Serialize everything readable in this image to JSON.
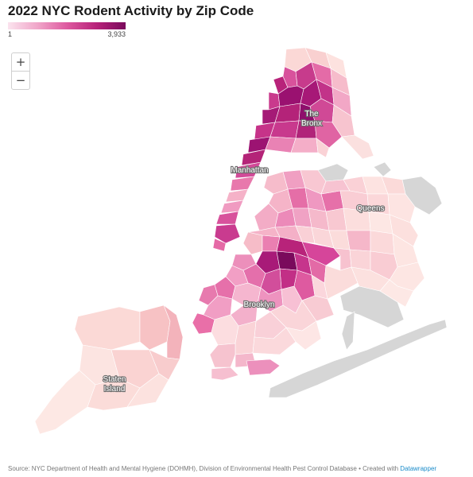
{
  "title": "2022 NYC Rodent Activity by Zip Code",
  "legend": {
    "min": "1",
    "max": "3,933"
  },
  "zoom": {
    "in_symbol": "+",
    "out_symbol": "−"
  },
  "labels": {
    "bronx_line1": "The",
    "bronx_line2": "Bronx",
    "manhattan": "Manhattan",
    "queens": "Queens",
    "brooklyn": "Brooklyn",
    "staten_line1": "Staten",
    "staten_line2": "Island"
  },
  "footer": {
    "source": "Source: NYC Department of Health and Mental Hygiene (DOHMH), Division of Environmental Health Pest Control Database • Created with ",
    "link": "Datawrapper"
  },
  "colors": {
    "scale": [
      "#fbe3ee",
      "#f0a6c9",
      "#de5aa0",
      "#b8237a",
      "#7a0a5c"
    ],
    "no_data": "#d6d6d6"
  }
}
